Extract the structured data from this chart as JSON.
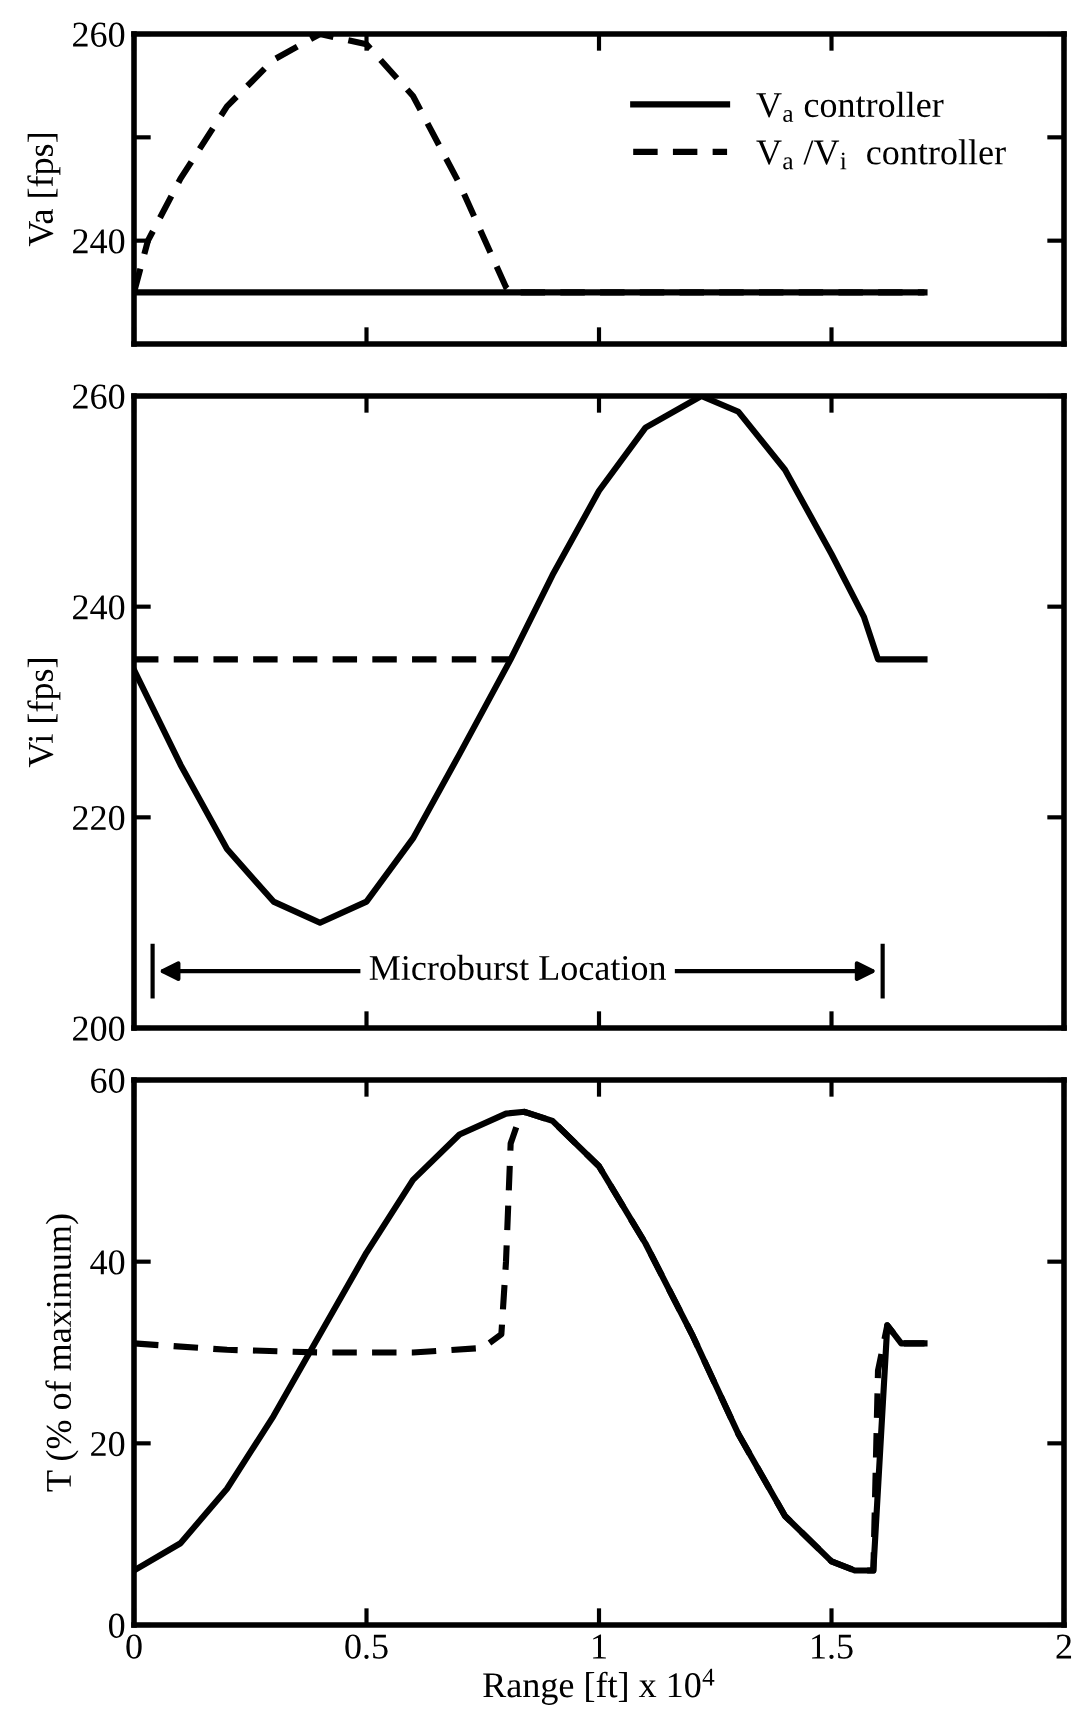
{
  "chart_data": [
    {
      "type": "line",
      "ylabel": "Va [fps]",
      "xlim": [
        0,
        2
      ],
      "xticks": [
        0,
        0.5,
        1,
        1.5,
        2
      ],
      "ylim": [
        230,
        260
      ],
      "yticks": [
        240,
        {
          "value": 250,
          "label": null
        },
        260
      ],
      "tick_labels": "y",
      "grid": false,
      "legend": "top right",
      "series": [
        {
          "name": "V$_{a}$ controller",
          "color": "#000000",
          "line_style": "solid",
          "x": [
            0,
            1.7
          ],
          "values": [
            235,
            235
          ]
        },
        {
          "name": "V$_{a}$ /V$_{i}$  controller",
          "color": "#000000",
          "line_style": "dashed",
          "x": [
            0,
            0.03,
            0.1,
            0.2,
            0.3,
            0.4,
            0.5,
            0.6,
            0.7,
            0.8,
            0.81,
            1.7
          ],
          "values": [
            235,
            240,
            246,
            253,
            257.5,
            260,
            259,
            254,
            245.5,
            235.5,
            235,
            235
          ]
        }
      ]
    },
    {
      "type": "line",
      "ylabel": "Vi [fps]",
      "xlim": [
        0,
        2
      ],
      "xticks": [
        0,
        0.5,
        1,
        1.5,
        2
      ],
      "ylim": [
        200,
        260
      ],
      "yticks": [
        200,
        220,
        240,
        260
      ],
      "tick_labels": "y",
      "grid": false,
      "annotations": [
        "Microburst Location"
      ],
      "series": [
        {
          "color": "#000000",
          "line_style": "solid",
          "x": [
            0,
            0.1,
            0.2,
            0.3,
            0.4,
            0.5,
            0.6,
            0.7,
            0.81,
            0.9,
            1.0,
            1.1,
            1.22,
            1.3,
            1.4,
            1.5,
            1.57,
            1.6,
            1.7
          ],
          "values": [
            234,
            225,
            217,
            212,
            210,
            212,
            218,
            226,
            235,
            243,
            251,
            257,
            260,
            258.5,
            253,
            245,
            239,
            235,
            235
          ]
        },
        {
          "color": "#000000",
          "line_style": "dashed",
          "x": [
            0,
            0.81
          ],
          "values": [
            235,
            235
          ]
        }
      ]
    },
    {
      "type": "line",
      "ylabel": "T (% of maximum)",
      "xlabel": "Range [ft] x 10$^{4}$",
      "xlim": [
        0,
        2
      ],
      "xticks": [
        0,
        0.5,
        1,
        1.5,
        2
      ],
      "ylim": [
        0,
        60
      ],
      "yticks": [
        0,
        20,
        40,
        60
      ],
      "grid": false,
      "series": [
        {
          "color": "#000000",
          "line_style": "solid",
          "x": [
            0,
            0.1,
            0.2,
            0.3,
            0.4,
            0.5,
            0.6,
            0.7,
            0.8,
            0.84,
            0.9,
            1.0,
            1.1,
            1.2,
            1.3,
            1.4,
            1.5,
            1.55,
            1.59,
            1.62,
            1.65,
            1.7
          ],
          "values": [
            6,
            9,
            15,
            23,
            32,
            41,
            49,
            54,
            56.3,
            56.5,
            55.5,
            50.5,
            42,
            32,
            21,
            12,
            7,
            6,
            6,
            33,
            31,
            31
          ]
        },
        {
          "color": "#000000",
          "line_style": "dashed",
          "x": [
            0,
            0.2,
            0.4,
            0.6,
            0.75,
            0.79,
            0.8,
            0.81,
            0.83,
            0.84,
            0.9,
            1.0,
            1.1,
            1.2,
            1.3,
            1.4,
            1.5,
            1.55,
            1.59,
            1.6,
            1.62,
            1.65,
            1.7
          ],
          "values": [
            31,
            30.3,
            30,
            30,
            30.5,
            32,
            40,
            53,
            56,
            56.5,
            55.5,
            50.5,
            42,
            32,
            21,
            12,
            7,
            6,
            6,
            28,
            33,
            31,
            31
          ]
        }
      ]
    }
  ]
}
